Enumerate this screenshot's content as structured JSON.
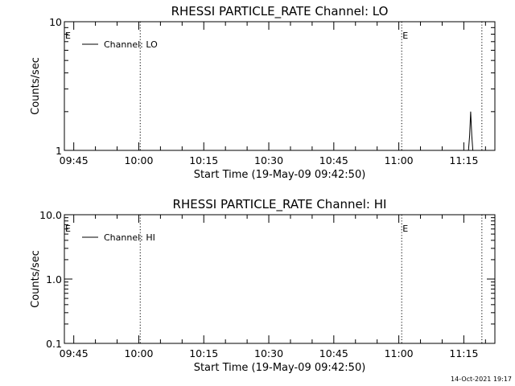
{
  "footer": {
    "timestamp": "14-Oct-2021 19:17"
  },
  "chart_data": [
    {
      "type": "line",
      "title": "RHESSI PARTICLE_RATE Channel: LO",
      "xlabel": "Start Time (19-May-09 09:42:50)",
      "ylabel": "Counts/sec",
      "yscale": "log",
      "ylim": [
        1,
        10
      ],
      "ytick_values": [
        1,
        10
      ],
      "ytick_labels": [
        "1",
        "10"
      ],
      "xlim": [
        "09:42:50",
        "11:22:10"
      ],
      "xtick_labels": [
        "09:45",
        "10:00",
        "10:15",
        "10:30",
        "10:45",
        "11:00",
        "11:15"
      ],
      "grid": false,
      "legend": {
        "position": "top-left",
        "entries": [
          "Channel: LO"
        ]
      },
      "event_markers": [
        {
          "time": "09:42:50",
          "label": "E",
          "line": false
        },
        {
          "time": "10:00:20",
          "label": "",
          "line": true
        },
        {
          "time": "11:00:40",
          "label": "E",
          "line": true
        },
        {
          "time": "11:19:10",
          "label": "",
          "line": true
        }
      ],
      "series": [
        {
          "name": "Channel: LO",
          "x": [
            "11:16:05",
            "11:16:20",
            "11:16:35",
            "11:16:50",
            "11:17:05"
          ],
          "y": [
            1,
            1.3,
            2,
            1.3,
            1
          ]
        }
      ]
    },
    {
      "type": "line",
      "title": "RHESSI PARTICLE_RATE Channel: HI",
      "xlabel": "Start Time (19-May-09 09:42:50)",
      "ylabel": "Counts/sec",
      "yscale": "log",
      "ylim": [
        0.1,
        10
      ],
      "ytick_values": [
        0.1,
        1,
        10
      ],
      "ytick_labels": [
        "0.1",
        "1.0",
        "10.0"
      ],
      "xlim": [
        "09:42:50",
        "11:22:10"
      ],
      "xtick_labels": [
        "09:45",
        "10:00",
        "10:15",
        "10:30",
        "10:45",
        "11:00",
        "11:15"
      ],
      "grid": false,
      "legend": {
        "position": "top-left",
        "entries": [
          "Channel: HI"
        ]
      },
      "event_markers": [
        {
          "time": "09:42:50",
          "label": "E",
          "line": false
        },
        {
          "time": "10:00:20",
          "label": "",
          "line": true
        },
        {
          "time": "11:00:40",
          "label": "E",
          "line": true
        },
        {
          "time": "11:19:10",
          "label": "",
          "line": true
        }
      ],
      "series": [
        {
          "name": "Channel: HI",
          "x": [],
          "y": []
        }
      ]
    }
  ]
}
